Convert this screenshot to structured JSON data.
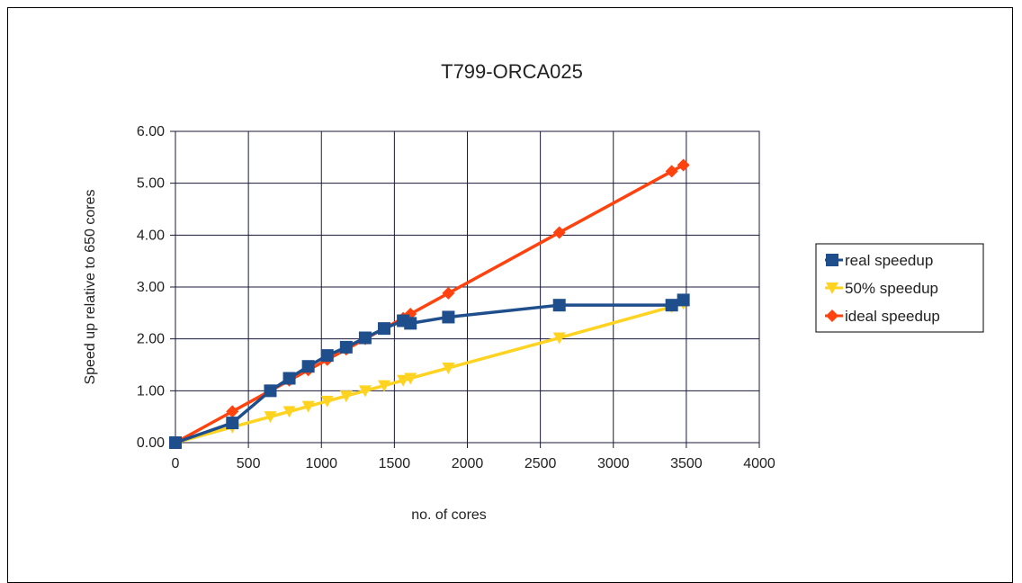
{
  "chart_data": {
    "type": "line",
    "title": "T799-ORCA025",
    "xlabel": "no. of cores",
    "ylabel": "Speed up relative to 650 cores",
    "xlim": [
      0,
      4000
    ],
    "ylim": [
      0,
      6
    ],
    "x_ticks": [
      "0",
      "500",
      "1000",
      "1500",
      "2000",
      "2500",
      "3000",
      "3500",
      "4000"
    ],
    "y_ticks": [
      "0.00",
      "1.00",
      "2.00",
      "3.00",
      "4.00",
      "5.00",
      "6.00"
    ],
    "grid": true,
    "legend_position": "right",
    "series": [
      {
        "name": "real speedup",
        "color": "#1f4e8c",
        "marker": "square",
        "x": [
          0,
          390,
          650,
          780,
          910,
          1040,
          1170,
          1300,
          1430,
          1560,
          1610,
          1870,
          2630,
          3400,
          3480
        ],
        "y": [
          0,
          0.38,
          1.0,
          1.24,
          1.47,
          1.68,
          1.84,
          2.02,
          2.2,
          2.35,
          2.3,
          2.42,
          2.65,
          2.65,
          2.75
        ]
      },
      {
        "name": "50% speedup",
        "color": "#ffd320",
        "marker": "triangle-down",
        "x": [
          0,
          390,
          650,
          780,
          910,
          1040,
          1170,
          1300,
          1430,
          1560,
          1610,
          1870,
          2630,
          3400,
          3480
        ],
        "y": [
          0,
          0.3,
          0.5,
          0.6,
          0.7,
          0.8,
          0.9,
          1.0,
          1.1,
          1.2,
          1.24,
          1.44,
          2.02,
          2.62,
          2.68
        ]
      },
      {
        "name": "ideal speedup",
        "color": "#ff420e",
        "marker": "diamond",
        "x": [
          0,
          390,
          650,
          780,
          910,
          1040,
          1170,
          1300,
          1430,
          1560,
          1610,
          1870,
          2630,
          3400,
          3480
        ],
        "y": [
          0,
          0.6,
          1.0,
          1.2,
          1.4,
          1.6,
          1.8,
          2.0,
          2.2,
          2.4,
          2.48,
          2.88,
          4.05,
          5.23,
          5.35
        ]
      }
    ]
  }
}
